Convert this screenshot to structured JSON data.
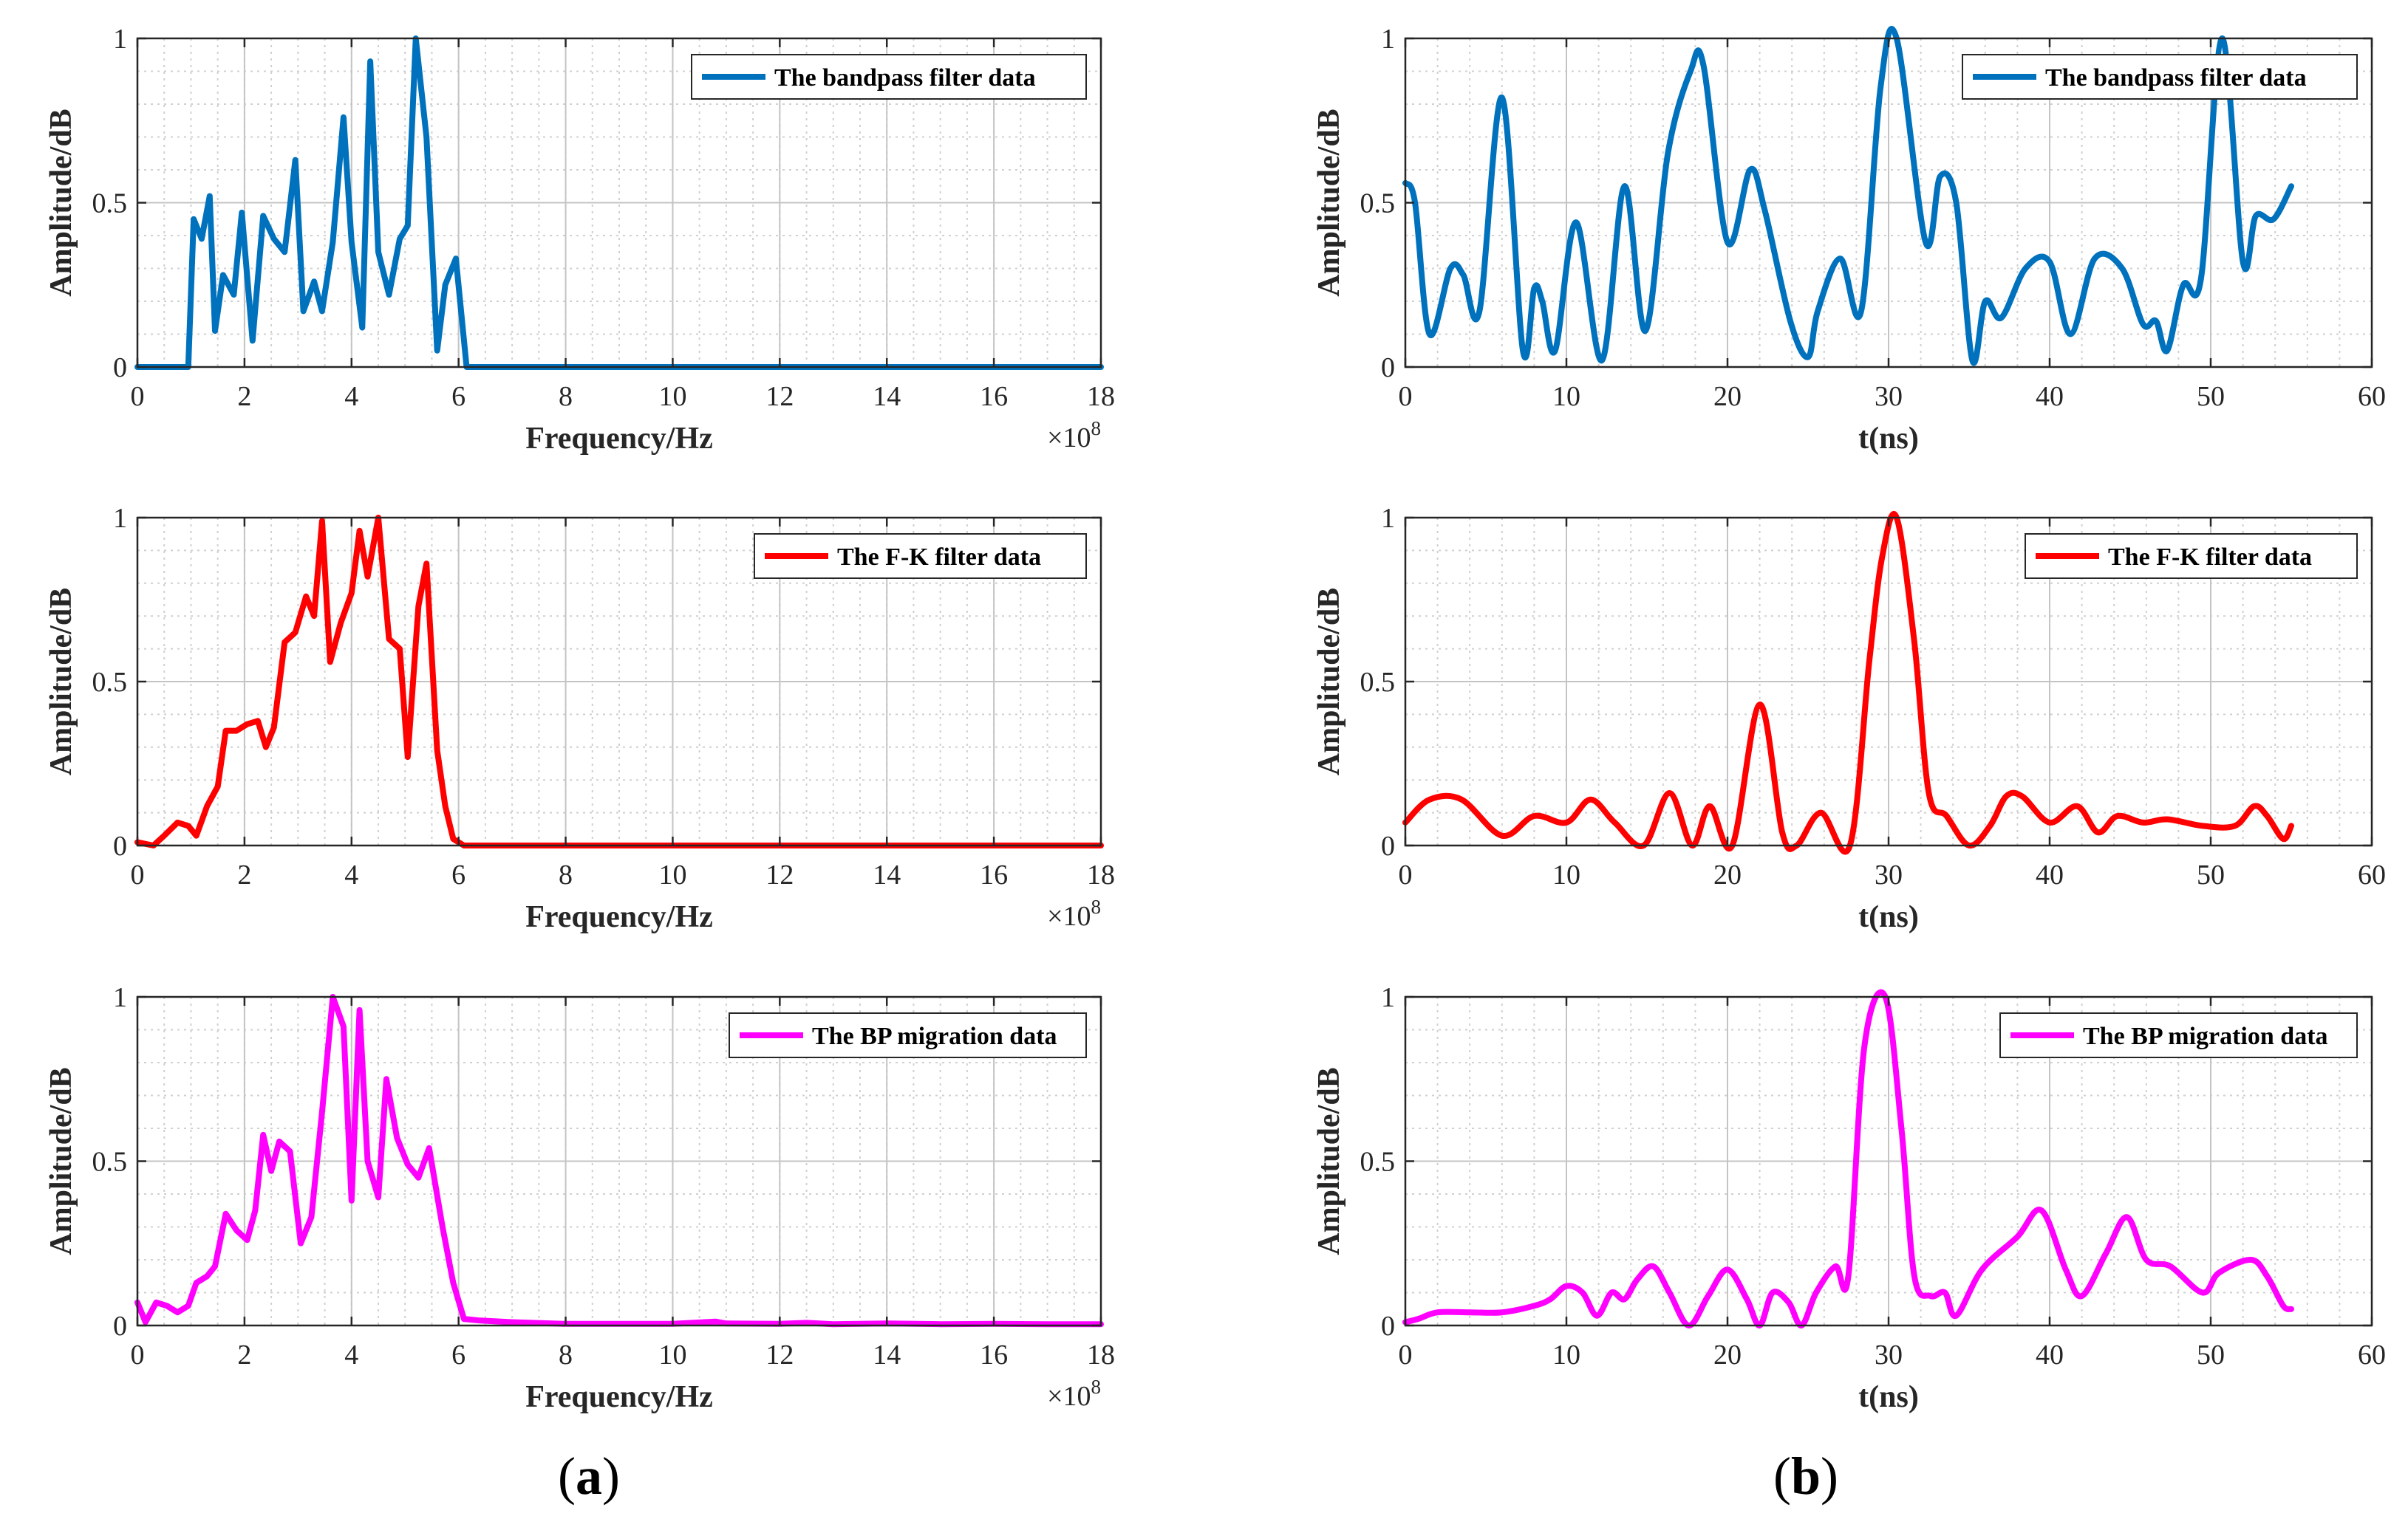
{
  "panel_labels": {
    "a": {
      "open": "(",
      "letter": "a",
      "close": ")"
    },
    "b": {
      "open": "(",
      "letter": "b",
      "close": ")"
    }
  },
  "colors": {
    "blue": "#0072BD",
    "red": "#FF0000",
    "magenta": "#FF00FF"
  },
  "chart_data": [
    {
      "id": "a1",
      "type": "line",
      "column": "a",
      "xlabel": "Frequency/Hz",
      "ylabel": "Amplitude/dB",
      "xlim": [
        0,
        18
      ],
      "ylim": [
        0,
        1
      ],
      "x_exponent": "×10",
      "x_exponent_power": "8",
      "xticks": [
        "0",
        "2",
        "4",
        "6",
        "8",
        "10",
        "12",
        "14",
        "16",
        "18"
      ],
      "yticks": [
        "0",
        "0.5",
        "1"
      ],
      "grid": true,
      "legend_position": "top-right",
      "series": [
        {
          "name": "The bandpass filter data",
          "color": "#0072BD",
          "x": [
            0,
            0.95,
            1.05,
            1.2,
            1.35,
            1.45,
            1.6,
            1.8,
            1.95,
            2.15,
            2.35,
            2.55,
            2.75,
            2.95,
            3.1,
            3.3,
            3.45,
            3.65,
            3.85,
            4.0,
            4.2,
            4.35,
            4.5,
            4.7,
            4.9,
            5.05,
            5.2,
            5.4,
            5.6,
            5.75,
            5.95,
            6.15,
            6.35,
            18
          ],
          "y": [
            0,
            0,
            0.45,
            0.39,
            0.52,
            0.11,
            0.28,
            0.22,
            0.47,
            0.08,
            0.46,
            0.39,
            0.35,
            0.63,
            0.17,
            0.26,
            0.17,
            0.38,
            0.76,
            0.38,
            0.12,
            0.93,
            0.35,
            0.22,
            0.39,
            0.43,
            1.0,
            0.7,
            0.05,
            0.25,
            0.33,
            0,
            0,
            0
          ]
        }
      ]
    },
    {
      "id": "a2",
      "type": "line",
      "column": "a",
      "xlabel": "Frequency/Hz",
      "ylabel": "Amplitude/dB",
      "xlim": [
        0,
        18
      ],
      "ylim": [
        0,
        1
      ],
      "x_exponent": "×10",
      "x_exponent_power": "8",
      "xticks": [
        "0",
        "2",
        "4",
        "6",
        "8",
        "10",
        "12",
        "14",
        "16",
        "18"
      ],
      "yticks": [
        "0",
        "0.5",
        "1"
      ],
      "grid": true,
      "legend_position": "top-right",
      "series": [
        {
          "name": "The F-K filter data",
          "color": "#FF0000",
          "x": [
            0,
            0.3,
            0.5,
            0.75,
            0.95,
            1.1,
            1.3,
            1.5,
            1.65,
            1.85,
            2.05,
            2.25,
            2.4,
            2.55,
            2.75,
            2.95,
            3.15,
            3.3,
            3.45,
            3.6,
            3.8,
            4.0,
            4.15,
            4.3,
            4.5,
            4.7,
            4.9,
            5.05,
            5.25,
            5.4,
            5.6,
            5.75,
            5.9,
            6.1,
            18
          ],
          "y": [
            0.01,
            0,
            0.03,
            0.07,
            0.06,
            0.03,
            0.12,
            0.18,
            0.35,
            0.35,
            0.37,
            0.38,
            0.3,
            0.36,
            0.62,
            0.65,
            0.76,
            0.7,
            0.99,
            0.56,
            0.68,
            0.77,
            0.96,
            0.82,
            1.0,
            0.63,
            0.6,
            0.27,
            0.73,
            0.86,
            0.29,
            0.12,
            0.02,
            0,
            0
          ]
        }
      ]
    },
    {
      "id": "a3",
      "type": "line",
      "column": "a",
      "xlabel": "Frequency/Hz",
      "ylabel": "Amplitude/dB",
      "xlim": [
        0,
        18
      ],
      "ylim": [
        0,
        1
      ],
      "x_exponent": "×10",
      "x_exponent_power": "8",
      "xticks": [
        "0",
        "2",
        "4",
        "6",
        "8",
        "10",
        "12",
        "14",
        "16",
        "18"
      ],
      "yticks": [
        "0",
        "0.5",
        "1"
      ],
      "grid": true,
      "legend_position": "top-right",
      "series": [
        {
          "name": "The BP migration data",
          "color": "#FF00FF",
          "x": [
            0,
            0.15,
            0.35,
            0.55,
            0.75,
            0.95,
            1.1,
            1.3,
            1.45,
            1.65,
            1.85,
            2.05,
            2.2,
            2.35,
            2.5,
            2.65,
            2.85,
            3.05,
            3.25,
            3.45,
            3.65,
            3.85,
            4.0,
            4.15,
            4.3,
            4.5,
            4.65,
            4.85,
            5.05,
            5.25,
            5.45,
            5.7,
            5.9,
            6.1,
            6.4,
            7,
            8,
            9,
            10,
            10.8,
            11,
            12,
            12.5,
            13,
            14,
            15,
            16,
            17,
            18
          ],
          "y": [
            0.07,
            0.01,
            0.07,
            0.06,
            0.04,
            0.06,
            0.13,
            0.15,
            0.18,
            0.34,
            0.29,
            0.26,
            0.35,
            0.58,
            0.47,
            0.56,
            0.53,
            0.25,
            0.33,
            0.65,
            1.0,
            0.91,
            0.38,
            0.96,
            0.5,
            0.39,
            0.75,
            0.57,
            0.49,
            0.45,
            0.54,
            0.3,
            0.13,
            0.02,
            0.015,
            0.01,
            0.005,
            0.005,
            0.005,
            0.012,
            0.006,
            0.005,
            0.008,
            0.004,
            0.006,
            0.004,
            0.005,
            0.004,
            0.004
          ]
        }
      ]
    },
    {
      "id": "b1",
      "type": "line",
      "column": "b",
      "xlabel": "t(ns)",
      "ylabel": "Amplitude/dB",
      "xlim": [
        0,
        60
      ],
      "ylim": [
        0,
        1
      ],
      "xticks": [
        "0",
        "10",
        "20",
        "30",
        "40",
        "50",
        "60"
      ],
      "yticks": [
        "0",
        "0.5",
        "1"
      ],
      "grid": true,
      "legend_position": "top-right",
      "series": [
        {
          "name": "The bandpass filter data",
          "color": "#0072BD",
          "x": [
            0,
            0.6,
            1.5,
            2.8,
            3.6,
            4.6,
            6.0,
            7.3,
            8.0,
            8.5,
            9.3,
            10.6,
            12.2,
            13.6,
            14.9,
            16.3,
            17.7,
            18.5,
            20.0,
            21.4,
            22.3,
            23.9,
            25.0,
            25.6,
            27.0,
            28.3,
            29.5,
            30.5,
            32.3,
            33.2,
            34.2,
            35.2,
            36.0,
            37.0,
            38.5,
            40.0,
            41.3,
            42.8,
            44.5,
            45.8,
            46.6,
            47.3,
            48.3,
            49.4,
            50.7,
            52.0,
            52.8,
            53.9,
            55.0
          ],
          "y": [
            0.56,
            0.5,
            0.1,
            0.3,
            0.28,
            0.17,
            0.82,
            0.05,
            0.24,
            0.2,
            0.05,
            0.44,
            0.02,
            0.55,
            0.11,
            0.65,
            0.9,
            0.92,
            0.38,
            0.6,
            0.48,
            0.14,
            0.03,
            0.17,
            0.33,
            0.17,
            0.85,
            1.0,
            0.38,
            0.58,
            0.5,
            0.02,
            0.2,
            0.15,
            0.3,
            0.32,
            0.1,
            0.33,
            0.3,
            0.13,
            0.14,
            0.05,
            0.25,
            0.27,
            1.0,
            0.32,
            0.46,
            0.45,
            0.55
          ]
        }
      ]
    },
    {
      "id": "b2",
      "type": "line",
      "column": "b",
      "xlabel": "t(ns)",
      "ylabel": "Amplitude/dB",
      "xlim": [
        0,
        60
      ],
      "ylim": [
        0,
        1
      ],
      "xticks": [
        "0",
        "10",
        "20",
        "30",
        "40",
        "50",
        "60"
      ],
      "yticks": [
        "0",
        "0.5",
        "1"
      ],
      "grid": true,
      "legend_position": "top-right",
      "series": [
        {
          "name": "The F-K filter data",
          "color": "#FF0000",
          "x": [
            0,
            1.5,
            3.5,
            6,
            8,
            10,
            11.5,
            13,
            14.8,
            16.4,
            17.8,
            18.9,
            20.3,
            22,
            23.4,
            24.3,
            25.8,
            27.6,
            28.8,
            29.6,
            30.5,
            31.6,
            32.5,
            33.6,
            35,
            36.3,
            37.3,
            38.3,
            40,
            41.7,
            43,
            44.2,
            45.8,
            47.3,
            49.5,
            51.5,
            52.7,
            53.5,
            54.5,
            55
          ],
          "y": [
            0.07,
            0.14,
            0.14,
            0.03,
            0.09,
            0.07,
            0.14,
            0.07,
            0.0,
            0.16,
            0.0,
            0.12,
            0.0,
            0.43,
            0.04,
            0.0,
            0.1,
            0.0,
            0.56,
            0.88,
            1.0,
            0.62,
            0.16,
            0.09,
            0.0,
            0.06,
            0.15,
            0.15,
            0.07,
            0.12,
            0.04,
            0.09,
            0.07,
            0.08,
            0.06,
            0.06,
            0.12,
            0.09,
            0.02,
            0.06
          ]
        }
      ]
    },
    {
      "id": "b3",
      "type": "line",
      "column": "b",
      "xlabel": "t(ns)",
      "ylabel": "Amplitude/dB",
      "xlim": [
        0,
        60
      ],
      "ylim": [
        0,
        1
      ],
      "xticks": [
        "0",
        "10",
        "20",
        "30",
        "40",
        "50",
        "60"
      ],
      "yticks": [
        "0",
        "0.5",
        "1"
      ],
      "grid": true,
      "legend_position": "top-right",
      "series": [
        {
          "name": "The BP migration data",
          "color": "#FF00FF",
          "x": [
            0,
            0.8,
            2,
            4,
            6,
            8,
            9,
            10,
            11,
            11.9,
            12.8,
            13.6,
            14.4,
            15.4,
            16.4,
            17.6,
            18.8,
            20.0,
            21.2,
            22.0,
            22.8,
            23.8,
            24.6,
            25.5,
            26.7,
            27.5,
            28.5,
            29.8,
            30.8,
            31.6,
            32.6,
            33.5,
            34.2,
            35.8,
            38,
            39.5,
            41,
            42,
            43.5,
            44.8,
            46,
            47.5,
            49.5,
            50.5,
            52.5,
            53.5,
            54.5,
            55
          ],
          "y": [
            0.01,
            0.02,
            0.04,
            0.04,
            0.04,
            0.06,
            0.08,
            0.12,
            0.1,
            0.03,
            0.1,
            0.08,
            0.14,
            0.18,
            0.1,
            0.0,
            0.09,
            0.17,
            0.08,
            0.0,
            0.1,
            0.07,
            0.0,
            0.1,
            0.18,
            0.15,
            0.85,
            1.0,
            0.6,
            0.15,
            0.09,
            0.1,
            0.03,
            0.17,
            0.27,
            0.35,
            0.17,
            0.09,
            0.22,
            0.33,
            0.2,
            0.18,
            0.1,
            0.16,
            0.2,
            0.15,
            0.06,
            0.05
          ]
        }
      ]
    }
  ]
}
